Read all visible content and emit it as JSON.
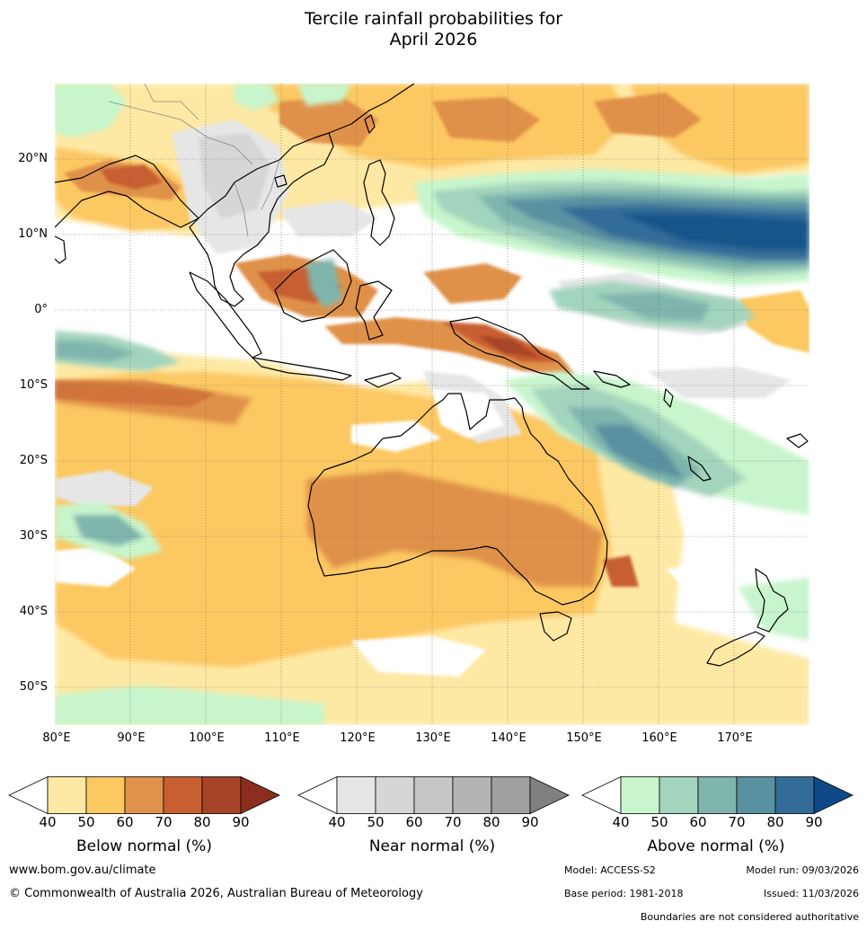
{
  "title_line1": "Tercile rainfall probabilities for",
  "title_line2": "April 2026",
  "lat_labels": [
    "20°N",
    "10°N",
    "0°",
    "10°S",
    "20°S",
    "30°S",
    "40°S",
    "50°S"
  ],
  "lon_labels": [
    "80°E",
    "90°E",
    "100°E",
    "110°E",
    "120°E",
    "130°E",
    "140°E",
    "150°E",
    "160°E",
    "170°E"
  ],
  "colorbars": [
    {
      "title": "Below normal (%)",
      "ticks": [
        "40",
        "50",
        "60",
        "70",
        "80",
        "90"
      ],
      "colors": [
        "#ffffff",
        "#fee9a4",
        "#fcc862",
        "#e0914a",
        "#c75f30",
        "#a74428",
        "#8c2d1d"
      ]
    },
    {
      "title": "Near normal (%)",
      "ticks": [
        "40",
        "50",
        "60",
        "70",
        "80",
        "90"
      ],
      "colors": [
        "#ffffff",
        "#e6e6e6",
        "#d6d6d6",
        "#c6c6c6",
        "#b4b4b4",
        "#a0a0a0",
        "#808080"
      ]
    },
    {
      "title": "Above normal (%)",
      "ticks": [
        "40",
        "50",
        "60",
        "70",
        "80",
        "90"
      ],
      "colors": [
        "#ffffff",
        "#c8f5cc",
        "#a3d4bd",
        "#7fb5ad",
        "#5a91a1",
        "#336c98",
        "#0e4a88"
      ]
    }
  ],
  "footer": {
    "website": "www.bom.gov.au/climate",
    "copyright": "© Commonwealth of Australia 2026, Australian Bureau of Meteorology",
    "model": "Model: ACCESS-S2",
    "model_run": "Model run: 09/03/2026",
    "base_period": "Base period: 1981-2018",
    "issued": "Issued: 11/03/2026",
    "disclaimer": "Boundaries are not considered authoritative"
  }
}
